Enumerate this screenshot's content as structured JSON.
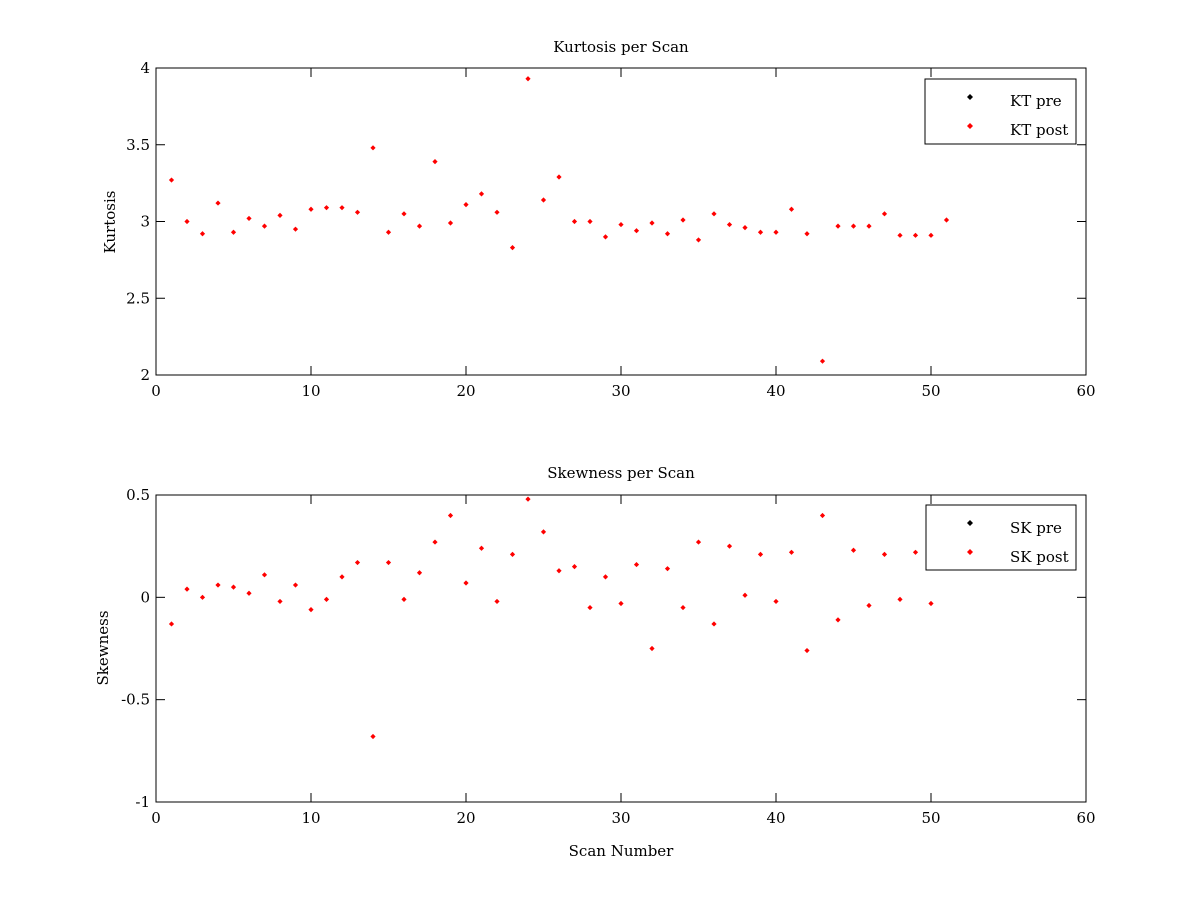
{
  "chart_data": [
    {
      "type": "scatter",
      "title": "Kurtosis per Scan",
      "xlabel": "",
      "ylabel": "Kurtosis",
      "xlim": [
        0,
        60
      ],
      "ylim": [
        2,
        4
      ],
      "xticks": [
        0,
        10,
        20,
        30,
        40,
        50,
        60
      ],
      "yticks": [
        2,
        2.5,
        3,
        3.5,
        4
      ],
      "xtick_labels": [
        "0",
        "10",
        "20",
        "30",
        "40",
        "50",
        "60"
      ],
      "ytick_labels": [
        "2",
        "2.5",
        "3",
        "3.5",
        "4"
      ],
      "grid": false,
      "legend_position": "top-right",
      "series": [
        {
          "name": "KT pre",
          "color": "#000000",
          "x": [],
          "y": []
        },
        {
          "name": "KT post",
          "color": "#ff0000",
          "x": [
            1,
            2,
            3,
            4,
            5,
            6,
            7,
            8,
            9,
            10,
            11,
            12,
            13,
            14,
            15,
            16,
            17,
            18,
            19,
            20,
            21,
            22,
            23,
            24,
            25,
            26,
            27,
            28,
            29,
            30,
            31,
            32,
            33,
            34,
            35,
            36,
            37,
            38,
            39,
            40,
            41,
            42,
            43,
            44,
            45,
            46,
            47,
            48,
            49,
            50,
            51
          ],
          "y": [
            3.27,
            3.0,
            2.92,
            3.12,
            2.93,
            3.02,
            2.97,
            3.04,
            2.95,
            3.08,
            3.09,
            3.09,
            3.06,
            3.48,
            2.93,
            3.05,
            2.97,
            3.39,
            2.99,
            3.11,
            3.18,
            3.06,
            2.83,
            3.93,
            3.14,
            3.29,
            3.0,
            3.0,
            2.9,
            2.98,
            2.94,
            2.99,
            2.92,
            3.01,
            2.88,
            3.05,
            2.98,
            2.96,
            2.93,
            2.93,
            3.08,
            2.92,
            2.09,
            2.97,
            2.97,
            2.97,
            3.05,
            2.91,
            2.91,
            2.91,
            3.01
          ]
        }
      ]
    },
    {
      "type": "scatter",
      "title": "Skewness per Scan",
      "xlabel": "Scan Number",
      "ylabel": "Skewness",
      "xlim": [
        0,
        60
      ],
      "ylim": [
        -1,
        0.5
      ],
      "xticks": [
        0,
        10,
        20,
        30,
        40,
        50,
        60
      ],
      "yticks": [
        -1,
        -0.5,
        0,
        0.5
      ],
      "xtick_labels": [
        "0",
        "10",
        "20",
        "30",
        "40",
        "50",
        "60"
      ],
      "ytick_labels": [
        "-1",
        "-0.5",
        "0",
        "0.5"
      ],
      "grid": false,
      "legend_position": "top-right",
      "series": [
        {
          "name": "SK pre",
          "color": "#000000",
          "x": [],
          "y": []
        },
        {
          "name": "SK post",
          "color": "#ff0000",
          "x": [
            1,
            2,
            3,
            4,
            5,
            6,
            7,
            8,
            9,
            10,
            11,
            12,
            13,
            14,
            15,
            16,
            17,
            18,
            19,
            20,
            21,
            22,
            23,
            24,
            25,
            26,
            27,
            28,
            29,
            30,
            31,
            32,
            33,
            34,
            35,
            36,
            37,
            38,
            39,
            40,
            41,
            42,
            43,
            44,
            45,
            46,
            47,
            48,
            49,
            50
          ],
          "y": [
            -0.13,
            0.04,
            0.0,
            0.06,
            0.05,
            0.02,
            0.11,
            -0.02,
            0.06,
            -0.06,
            -0.01,
            0.1,
            0.17,
            -0.68,
            0.17,
            -0.01,
            0.12,
            0.27,
            0.4,
            0.07,
            0.24,
            -0.02,
            0.21,
            0.48,
            0.32,
            0.13,
            0.15,
            -0.05,
            0.1,
            -0.03,
            0.16,
            -0.25,
            0.14,
            -0.05,
            0.27,
            -0.13,
            0.25,
            0.01,
            0.21,
            -0.02,
            0.22,
            -0.26,
            0.4,
            -0.11,
            0.23,
            -0.04,
            0.21,
            -0.01,
            0.22,
            -0.03
          ]
        }
      ]
    }
  ]
}
